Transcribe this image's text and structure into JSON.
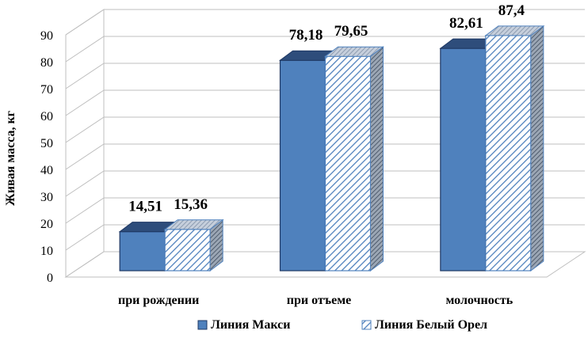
{
  "chart_data": {
    "type": "bar",
    "title": "",
    "xlabel": "",
    "ylabel": "Живая масса, кг",
    "categories": [
      "при рождении",
      "при отъеме",
      "молочность"
    ],
    "series": [
      {
        "name": "Линия Макси",
        "values": [
          14.51,
          78.18,
          82.61
        ],
        "labels": [
          "14,51",
          "78,18",
          "82,61"
        ],
        "color": "#4f81bd",
        "pattern": "solid"
      },
      {
        "name": "Линия Белый Орел",
        "values": [
          15.36,
          79.65,
          87.4
        ],
        "labels": [
          "15,36",
          "79,65",
          "87,4"
        ],
        "color": "#4f81bd",
        "pattern": "diagonal-hatch"
      }
    ],
    "ylim": [
      0,
      90
    ],
    "yticks": [
      "0",
      "10",
      "20",
      "30",
      "40",
      "50",
      "60",
      "70",
      "80",
      "90"
    ],
    "grid": true,
    "legend": "bottom",
    "style": "3d-clustered-column"
  }
}
